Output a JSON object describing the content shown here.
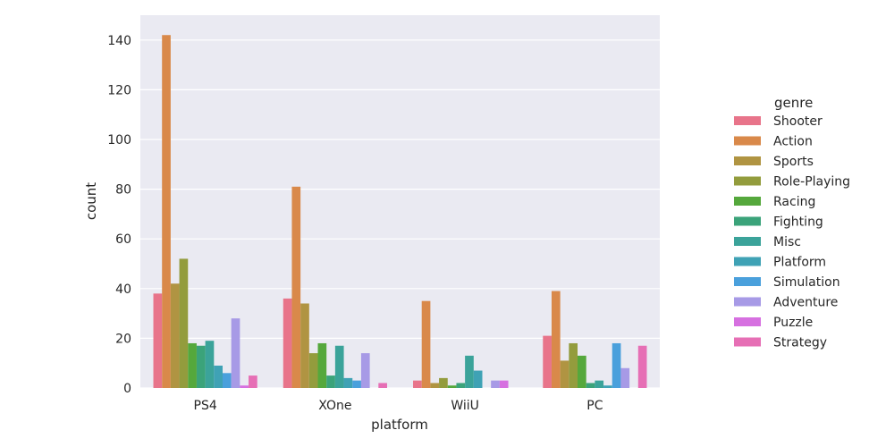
{
  "chart_data": {
    "type": "bar",
    "xlabel": "platform",
    "ylabel": "count",
    "categories": [
      "PS4",
      "XOne",
      "WiiU",
      "PC"
    ],
    "ylim": [
      0,
      150
    ],
    "yticks": [
      0,
      20,
      40,
      60,
      80,
      100,
      120,
      140
    ],
    "grid": true,
    "legend": {
      "title": "genre",
      "placement": "right"
    },
    "series": [
      {
        "name": "Shooter",
        "color": "#e8748a",
        "values": [
          38,
          36,
          3,
          21
        ]
      },
      {
        "name": "Action",
        "color": "#d9894a",
        "values": [
          142,
          81,
          35,
          39
        ]
      },
      {
        "name": "Sports",
        "color": "#b09442",
        "values": [
          42,
          34,
          2,
          11
        ]
      },
      {
        "name": "Role-Playing",
        "color": "#939c3d",
        "values": [
          52,
          14,
          4,
          18
        ]
      },
      {
        "name": "Racing",
        "color": "#55a83c",
        "values": [
          18,
          18,
          1,
          13
        ]
      },
      {
        "name": "Fighting",
        "color": "#3ba37a",
        "values": [
          17,
          5,
          2,
          2
        ]
      },
      {
        "name": "Misc",
        "color": "#3ba39a",
        "values": [
          19,
          17,
          13,
          3
        ]
      },
      {
        "name": "Platform",
        "color": "#3fa2b5",
        "values": [
          9,
          4,
          7,
          1
        ]
      },
      {
        "name": "Simulation",
        "color": "#4aa0dc",
        "values": [
          6,
          3,
          0,
          18
        ]
      },
      {
        "name": "Adventure",
        "color": "#a79ae6",
        "values": [
          28,
          14,
          3,
          8
        ]
      },
      {
        "name": "Puzzle",
        "color": "#d670e0",
        "values": [
          1,
          0,
          3,
          0
        ]
      },
      {
        "name": "Strategy",
        "color": "#e66fb5",
        "values": [
          5,
          2,
          0,
          17
        ]
      }
    ]
  }
}
